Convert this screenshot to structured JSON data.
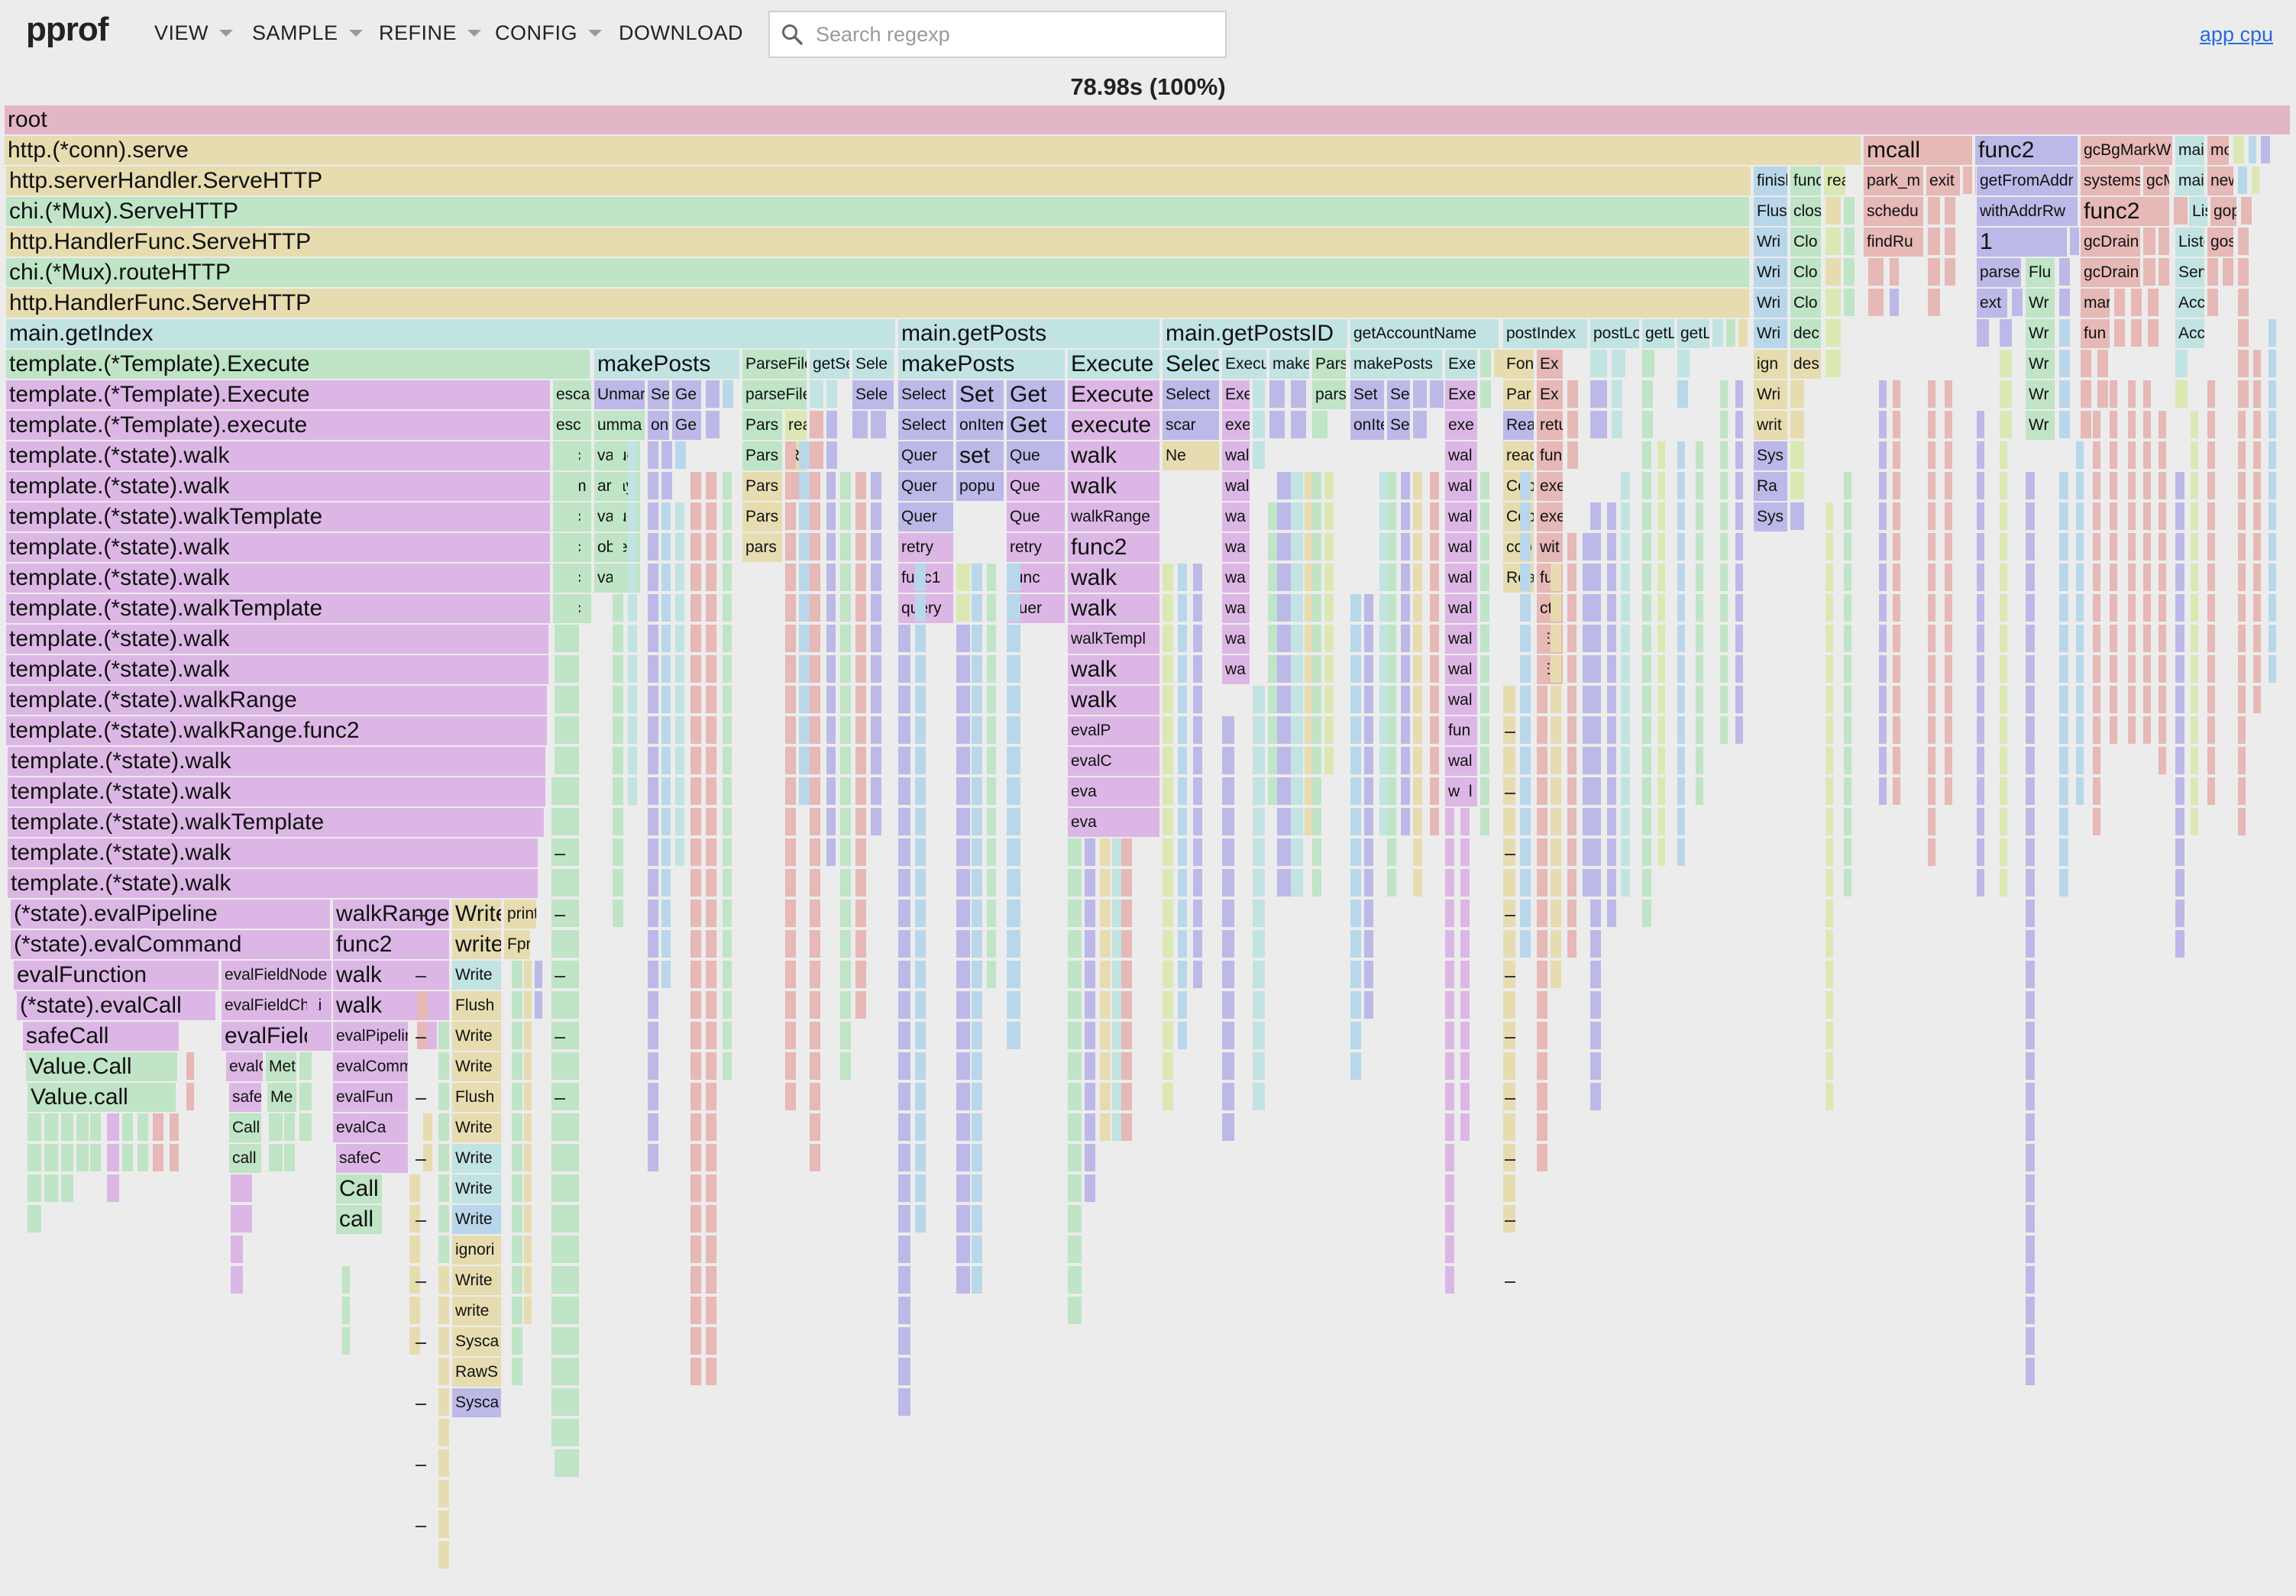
{
  "header": {
    "brand": "pprof",
    "menus": [
      {
        "name": "menu-view",
        "label": "VIEW",
        "has_caret": true
      },
      {
        "name": "menu-sample",
        "label": "SAMPLE",
        "has_caret": true
      },
      {
        "name": "menu-refine",
        "label": "REFINE",
        "has_caret": true
      },
      {
        "name": "menu-config",
        "label": "CONFIG",
        "has_caret": true
      },
      {
        "name": "menu-download",
        "label": "DOWNLOAD",
        "has_caret": false
      }
    ],
    "search": {
      "placeholder": "Search regexp",
      "value": ""
    },
    "app_link": "app cpu"
  },
  "total": "78.98s (100%)",
  "colors": {
    "root": "#e2b6c7",
    "tan": "#e6dcb0",
    "green": "#bfe4c6",
    "teal": "#c1e3e1",
    "purple": "#dcb7e5",
    "lilac": "#bcb9e8",
    "blue": "#b9d7ea",
    "salmon": "#e6b8b6",
    "lime": "#dbe8b4"
  },
  "flame": {
    "root": "root",
    "serve": "http.(*conn).serve",
    "mcall": "mcall",
    "func2": "func2",
    "gcbg": "gcBgMarkW",
    "main_short": "mai",
    "mor": "mor",
    "park": "park_m",
    "exit": "exit",
    "getfromaddr": "getFromAddr",
    "systemstack": "systemst",
    "gcm": "gcM",
    "new": "new",
    "schedule": "schedu",
    "withaddr": "withAddrRw",
    "func2b": "func2",
    "gop": "gop",
    "findrun": "findRu",
    "one": "1",
    "gcdrain1": "gcDrain",
    "gos": "gos",
    "parse": "parse",
    "flu": "Flu",
    "gcdrain2": "gcDrain",
    "serv": "Serv",
    "ext": "ext",
    "wr": "Wr",
    "mar": "mar",
    "acc": "Acc",
    "wri": "Wri",
    "fun": "fun",
    "list": "Liste",
    "servehttp": "http.serverHandler.ServeHTTP",
    "mux_serve": "chi.(*Mux).ServeHTTP",
    "hf_serve": "http.HandlerFunc.ServeHTTP",
    "routehttp": "chi.(*Mux).routeHTTP",
    "hf_serve2": "http.HandlerFunc.ServeHTTP",
    "finish": "finish",
    "func_s": "func",
    "read_s": "reac",
    "flus": "Flus",
    "clos": "clos",
    "wri2": "Wri",
    "clo": "Clo",
    "ign": "ign",
    "dec": "dec",
    "des": "des",
    "wri3": "Wri",
    "writ": "writ",
    "sys": "Sys",
    "ra": "Ra",
    "sys2": "Sys",
    "getindex": "main.getIndex",
    "getposts": "main.getPosts",
    "getpostsid": "main.getPostsID",
    "getaccount": "getAccountName",
    "postindex": "postIndex",
    "postlo": "postLo",
    "getl": "getL",
    "getl2": "getL",
    "exec1": "template.(*Template).Execute",
    "exec2": "template.(*Template).Execute",
    "execl": "template.(*Template).execute",
    "walk1": "template.(*state).walk",
    "walk2": "template.(*state).walk",
    "walktpl1": "template.(*state).walkTemplate",
    "walk3": "template.(*state).walk",
    "walk4": "template.(*state).walk",
    "walktpl2": "template.(*state).walkTemplate",
    "walk5": "template.(*state).walk",
    "walk6": "template.(*state).walk",
    "walkrange": "template.(*state).walkRange",
    "walkrangef": "template.(*state).walkRange.func2",
    "walk7": "template.(*state).walk",
    "walk8": "template.(*state).walk",
    "walktpl3": "template.(*state).walkTemplate",
    "walk9": "template.(*state).walk",
    "walk10": "template.(*state).walk",
    "evalpipe": "(*state).evalPipeline",
    "evalcmd": "(*state).evalCommand",
    "evalfunc": "evalFunction",
    "evalcall": "(*state).evalCall",
    "safecall": "safeCall",
    "valuecall": "Value.Call",
    "valuecall2": "Value.call",
    "evalfieldnode": "evalFieldNode",
    "evalfieldchain": "evalFieldChain",
    "evalfield": "evalField",
    "evalc": "evalC",
    "met": "Met",
    "safe": "safe",
    "me": "Me",
    "callc": "Call",
    "callc2": "call",
    "walkrange2": "walkRange",
    "func2c": "func2",
    "walkw": "walk",
    "walkw2": "walk",
    "evalpipelin": "evalPipelin",
    "evalcomm": "evalComm",
    "evalfun": "evalFun",
    "evalca": "evalCa",
    "safec": "safeC",
    "callbig": "Call",
    "callbig2": "call",
    "write1": "Write",
    "write2": "write",
    "write3": "Write",
    "flush1": "Flush",
    "write4": "Write",
    "write5": "Write",
    "flush2": "Flush",
    "write6": "Write",
    "write7": "Write",
    "write8": "Write",
    "write9": "Write",
    "ignori": "ignori",
    "write10": "Write",
    "write11": "write",
    "sysca": "Sysca",
    "raws": "RawS",
    "sysca2": "Sysca",
    "print": "print",
    "fpr": "Fpr",
    "esca": "esca",
    "esc": "esc",
    "esc2": "esc",
    "com": "com",
    "esc3": "esc",
    "esc4": "esc",
    "esc5": "esc",
    "esc6": "esc",
    "makeposts": "makePosts",
    "unmar": "Unmar",
    "sel": "Sel",
    "ge": "Ge",
    "umma": "umma",
    "onl": "onl",
    "ge2": "Ge",
    "value": "value",
    "array": "array",
    "valu": "valu",
    "obje": "obje",
    "val": "val",
    "parsefile": "ParseFile",
    "getse": "getSe",
    "sele": "Sele",
    "parsefile2": "parseFile",
    "sele2": "Sele",
    "pars": "Pars",
    "rea": "rea",
    "pars2": "Pars",
    "rea2": "Rea",
    "pars3": "Pars",
    "pars4": "Pars",
    "pars5": "pars",
    "makeposts2": "makePosts",
    "execute_b": "Execute",
    "select1": "Select",
    "set1": "Set",
    "get1": "Get",
    "execute_c": "Execute",
    "select2": "Select",
    "onitem": "onItem",
    "get2": "Get",
    "execute_l": "execute",
    "quer1": "Quer",
    "set2": "set",
    "que1": "Que",
    "walk_b1": "walk",
    "quer2": "Quer",
    "popu": "popu",
    "que2": "Que",
    "walk_b2": "walk",
    "quer3": "Quer",
    "que3": "Que",
    "walkrange_b": "walkRange",
    "retry1": "retry",
    "retry2": "retry",
    "func2_b": "func2",
    "func1": "func1",
    "func_b": "func",
    "walk_b3": "walk",
    "query": "query",
    "quer4": "quer",
    "walk_b4": "walk",
    "walktempl": "walkTempl",
    "walk_b5": "walk",
    "walk_b6": "walk",
    "evalp": "evalP",
    "evalc2": "evalC",
    "eva1": "eva",
    "eva2": "eva",
    "select3": "Select",
    "execu": "Execu",
    "make": "make",
    "pars6": "Pars",
    "select4": "Select",
    "exe1": "Exe",
    "pars7": "pars",
    "scar": "scar",
    "exe2": "exe",
    "ne": "Ne",
    "wal1": "wal",
    "wal2": "wal",
    "wa1": "wa",
    "wa2": "wa",
    "wa3": "wa",
    "wa4": "wa",
    "wa5": "wa",
    "wa6": "wa",
    "makeposts3": "makePosts",
    "exe3": "Exe",
    "set3": "Set",
    "se1": "Se",
    "exe4": "Exe",
    "onite": "onIte",
    "se2": "Se",
    "exe5": "exe",
    "wal3": "wal",
    "wal4": "wal",
    "wal5": "wal",
    "wal6": "wal",
    "wal7": "wal",
    "wal8": "wal",
    "fun2": "fun",
    "wal9": "wal",
    "wal10": "wal",
    "wal11": "wal",
    "wal12": "wal",
    "wal13": "wal",
    "fon": "Fon",
    "ex1": "Ex",
    "par": "Par",
    "ex2": "Ex",
    "rea3": "Rea",
    "retu": "retu",
    "reac2": "reac",
    "fun3": "fun",
    "cop": "Cop",
    "exe6": "exe",
    "cop2": "Cop",
    "exe7": "exe",
    "cop3": "cop",
    "wit": "wit",
    "rea4": "Rea",
    "fun4": "fun",
    "ctx": "ctx",
    "ex3": "Ex",
    "ex4": "Ex"
  }
}
